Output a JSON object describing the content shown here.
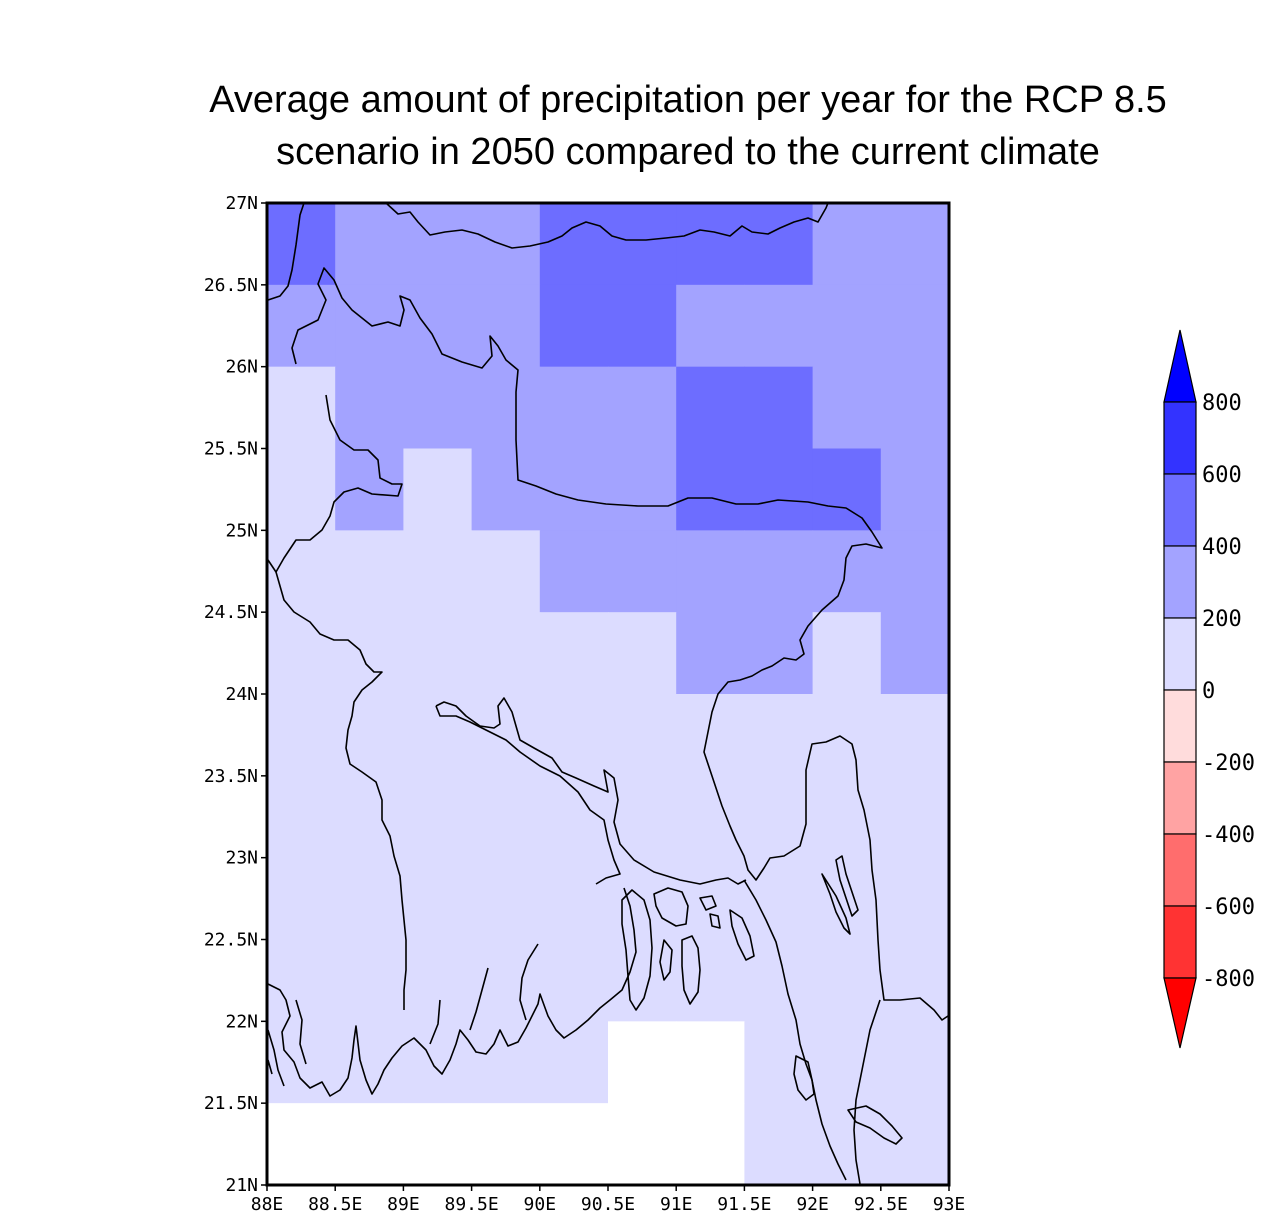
{
  "title": {
    "line1": "Average amount of precipitation per year for the RCP 8.5",
    "line2": "scenario in 2050 compared to the current climate"
  },
  "map": {
    "lon_range": [
      88,
      93
    ],
    "lat_range": [
      21,
      27
    ],
    "grid_step": 0.5,
    "lon_ticks": [
      "88E",
      "88.5E",
      "89E",
      "89.5E",
      "90E",
      "90.5E",
      "91E",
      "91.5E",
      "92E",
      "92.5E",
      "93E"
    ],
    "lat_ticks": [
      "27N",
      "26.5N",
      "26N",
      "25.5N",
      "25N",
      "24.5N",
      "24N",
      "23.5N",
      "23N",
      "22.5N",
      "22N",
      "21.5N",
      "21N"
    ],
    "cell_rows_north_to_south": [
      [
        3,
        2,
        2,
        2,
        3,
        3,
        3,
        3,
        2,
        2
      ],
      [
        2,
        2,
        2,
        2,
        3,
        3,
        2,
        2,
        2,
        2
      ],
      [
        1,
        2,
        2,
        2,
        2,
        2,
        3,
        3,
        2,
        2
      ],
      [
        1,
        2,
        1,
        2,
        2,
        2,
        3,
        3,
        3,
        2
      ],
      [
        1,
        1,
        1,
        1,
        2,
        2,
        2,
        2,
        2,
        2
      ],
      [
        1,
        1,
        1,
        1,
        1,
        1,
        2,
        2,
        1,
        2
      ],
      [
        1,
        1,
        1,
        1,
        1,
        1,
        1,
        1,
        1,
        1
      ],
      [
        1,
        1,
        1,
        1,
        1,
        1,
        1,
        1,
        1,
        1
      ],
      [
        1,
        1,
        1,
        1,
        1,
        1,
        1,
        1,
        1,
        1
      ],
      [
        1,
        1,
        1,
        1,
        1,
        1,
        1,
        1,
        1,
        1
      ],
      [
        1,
        1,
        1,
        1,
        1,
        0,
        0,
        1,
        1,
        1
      ],
      [
        0,
        0,
        0,
        0,
        0,
        0,
        0,
        1,
        1,
        1
      ]
    ],
    "class_colors": [
      "#ffffff",
      "#dcdcff",
      "#a3a3ff",
      "#6d6dff",
      "#3333ff"
    ],
    "class_meaning": [
      "no data",
      "0 to 200",
      "200 to 400",
      "400 to 600",
      "600 to 800"
    ]
  },
  "colorbar": {
    "labels": [
      "800",
      "600",
      "400",
      "200",
      "0",
      "-200",
      "-400",
      "-600",
      "-800"
    ],
    "box_colors_top_to_bottom": [
      "#3333ff",
      "#6d6dff",
      "#a3a3ff",
      "#dcdcff",
      "#ffdcdc",
      "#ffa3a3",
      "#ff6d6d",
      "#ff3333"
    ],
    "top_arrow_color": "#0000ff",
    "bottom_arrow_color": "#ff0000"
  }
}
